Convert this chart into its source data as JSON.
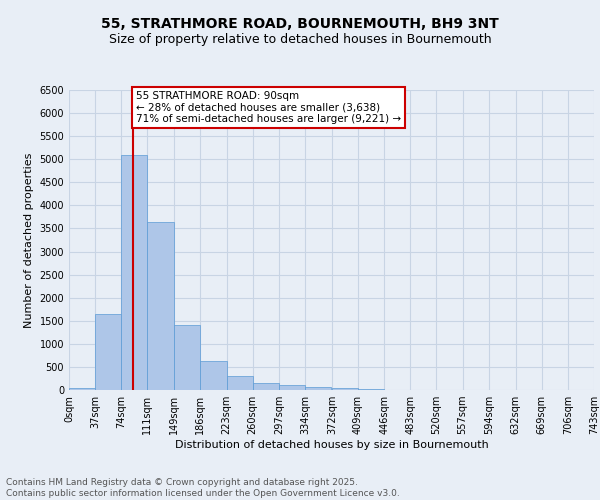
{
  "title": "55, STRATHMORE ROAD, BOURNEMOUTH, BH9 3NT",
  "subtitle": "Size of property relative to detached houses in Bournemouth",
  "xlabel": "Distribution of detached houses by size in Bournemouth",
  "ylabel": "Number of detached properties",
  "footer_line1": "Contains HM Land Registry data © Crown copyright and database right 2025.",
  "footer_line2": "Contains public sector information licensed under the Open Government Licence v3.0.",
  "bar_values": [
    50,
    1650,
    5100,
    3650,
    1400,
    620,
    310,
    145,
    110,
    75,
    50,
    30,
    5,
    2,
    1,
    0,
    0,
    0,
    0,
    0
  ],
  "bin_labels": [
    "0sqm",
    "37sqm",
    "74sqm",
    "111sqm",
    "149sqm",
    "186sqm",
    "223sqm",
    "260sqm",
    "297sqm",
    "334sqm",
    "372sqm",
    "409sqm",
    "446sqm",
    "483sqm",
    "520sqm",
    "557sqm",
    "594sqm",
    "632sqm",
    "669sqm",
    "706sqm",
    "743sqm"
  ],
  "bin_edges": [
    0,
    37,
    74,
    111,
    149,
    186,
    223,
    260,
    297,
    334,
    372,
    409,
    446,
    483,
    520,
    557,
    594,
    632,
    669,
    706,
    743
  ],
  "bar_color": "#aec6e8",
  "bar_edge_color": "#5b9bd5",
  "property_size": 90,
  "ylim": [
    0,
    6500
  ],
  "yticks": [
    0,
    500,
    1000,
    1500,
    2000,
    2500,
    3000,
    3500,
    4000,
    4500,
    5000,
    5500,
    6000,
    6500
  ],
  "annotation_text": "55 STRATHMORE ROAD: 90sqm\n← 28% of detached houses are smaller (3,638)\n71% of semi-detached houses are larger (9,221) →",
  "annotation_box_color": "#ffffff",
  "annotation_box_edge_color": "#cc0000",
  "red_line_color": "#cc0000",
  "grid_color": "#c8d4e4",
  "background_color": "#e8eef6",
  "title_fontsize": 10,
  "subtitle_fontsize": 9,
  "axis_label_fontsize": 8,
  "tick_fontsize": 7,
  "annotation_fontsize": 7.5,
  "footer_fontsize": 6.5
}
